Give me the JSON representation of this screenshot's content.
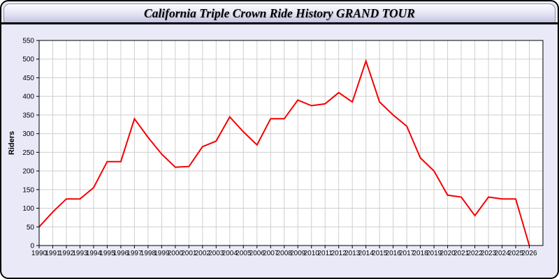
{
  "window": {
    "title": "California Triple Crown Ride History GRAND TOUR"
  },
  "colors": {
    "page_background": "#e9e9f8",
    "frame_border": "#000000",
    "header_gradient_top": "#fdfdff",
    "header_gradient_bottom": "#c3c3e3",
    "plot_background": "#ffffff",
    "gridline": "#cfcfcf",
    "axis": "#000000",
    "line": "#f40000"
  },
  "chart_data": {
    "type": "line",
    "title": "California Triple Crown Ride History GRAND TOUR",
    "xlabel": "",
    "ylabel": "Riders",
    "x": [
      1990,
      1991,
      1992,
      1993,
      1994,
      1995,
      1996,
      1997,
      1998,
      1999,
      2000,
      2001,
      2002,
      2003,
      2004,
      2005,
      2006,
      2007,
      2008,
      2009,
      2010,
      2011,
      2012,
      2013,
      2014,
      2015,
      2016,
      2017,
      2018,
      2019,
      2020,
      2021,
      2022,
      2023,
      2024,
      2025,
      2026
    ],
    "series": [
      {
        "name": "Riders",
        "color": "#f40000",
        "values": [
          50,
          90,
          125,
          125,
          155,
          225,
          225,
          340,
          290,
          245,
          210,
          212,
          265,
          280,
          345,
          305,
          270,
          340,
          340,
          390,
          375,
          380,
          410,
          385,
          495,
          385,
          350,
          320,
          235,
          200,
          135,
          130,
          80,
          130,
          125,
          125,
          0
        ]
      }
    ],
    "ylim": [
      0,
      550
    ],
    "ytick_step": 50,
    "grid": true,
    "legend_position": "none"
  }
}
